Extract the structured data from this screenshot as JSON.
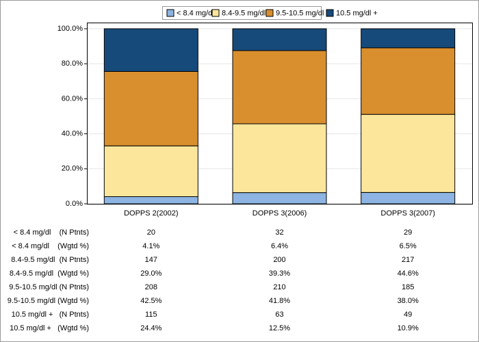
{
  "chart_data": {
    "type": "bar",
    "stacked": true,
    "categories": [
      "DOPPS 2(2002)",
      "DOPPS 3(2006)",
      "DOPPS 3(2007)"
    ],
    "series": [
      {
        "name": "< 8.4 mg/dl",
        "color": "#8db4e2",
        "values": [
          4.1,
          6.4,
          6.5
        ]
      },
      {
        "name": "8.4-9.5 mg/dl",
        "color": "#fbe69c",
        "values": [
          29.0,
          39.3,
          44.6
        ]
      },
      {
        "name": "9.5-10.5 mg/dl",
        "color": "#d98f2e",
        "values": [
          42.5,
          41.8,
          38.0
        ]
      },
      {
        "name": "10.5 mg/dl +",
        "color": "#164a7a",
        "values": [
          24.4,
          12.5,
          10.9
        ]
      }
    ],
    "ylim": [
      0,
      100
    ],
    "yticks": [
      {
        "value": 0,
        "label": "0.0%"
      },
      {
        "value": 20,
        "label": "20.0%"
      },
      {
        "value": 40,
        "label": "40.0%"
      },
      {
        "value": 60,
        "label": "60.0%"
      },
      {
        "value": 80,
        "label": "80.0%"
      },
      {
        "value": 100,
        "label": "100.0%"
      }
    ],
    "grid": true
  },
  "table": {
    "rows": [
      {
        "label": "< 8.4 mg/dl    (N Ptnts)",
        "cells": [
          "20",
          "32",
          "29"
        ]
      },
      {
        "label": "< 8.4 mg/dl    (Wgtd %)",
        "cells": [
          "4.1%",
          "6.4%",
          "6.5%"
        ]
      },
      {
        "label": "8.4-9.5 mg/dl  (N Ptnts)",
        "cells": [
          "147",
          "200",
          "217"
        ]
      },
      {
        "label": "8.4-9.5 mg/dl  (Wgtd %)",
        "cells": [
          "29.0%",
          "39.3%",
          "44.6%"
        ]
      },
      {
        "label": "9.5-10.5 mg/dl (N Ptnts)",
        "cells": [
          "208",
          "210",
          "185"
        ]
      },
      {
        "label": "9.5-10.5 mg/dl (Wgtd %)",
        "cells": [
          "42.5%",
          "41.8%",
          "38.0%"
        ]
      },
      {
        "label": "10.5 mg/dl +   (N Ptnts)",
        "cells": [
          "115",
          "63",
          "49"
        ]
      },
      {
        "label": "10.5 mg/dl +   (Wgtd %)",
        "cells": [
          "24.4%",
          "12.5%",
          "10.9%"
        ]
      }
    ]
  }
}
